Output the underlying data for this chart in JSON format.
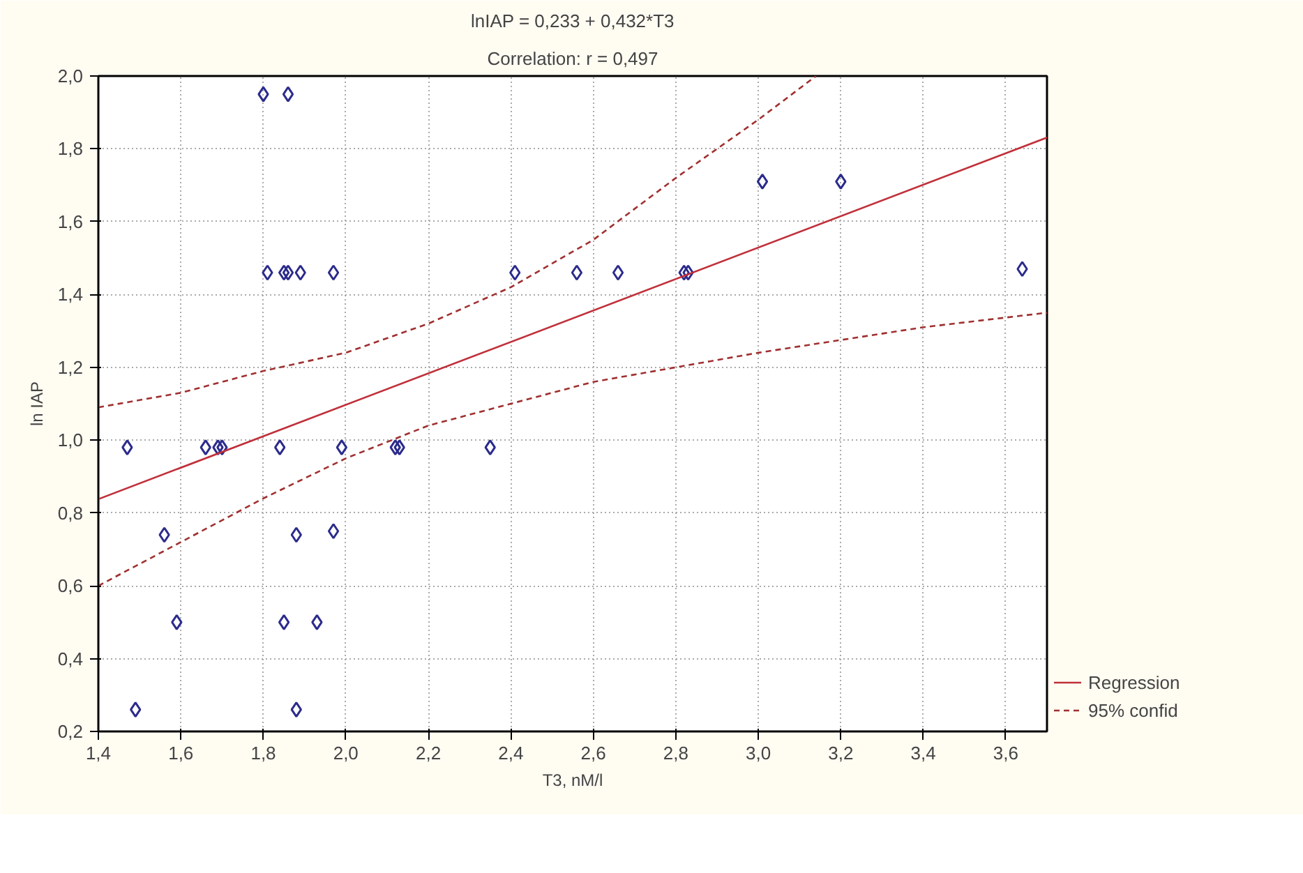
{
  "chart_data": {
    "type": "scatter",
    "title": "lnIAP = 0,233 + 0,432*T3",
    "subtitle": "Correlation: r = 0,497",
    "xlabel": "T3, nM/l",
    "ylabel": "ln IAP",
    "xlim": [
      1.4,
      3.7
    ],
    "ylim": [
      0.2,
      2.0
    ],
    "xticks": [
      {
        "value": 1.4,
        "label": "1,4"
      },
      {
        "value": 1.6,
        "label": "1,6"
      },
      {
        "value": 1.8,
        "label": "1,8"
      },
      {
        "value": 2.0,
        "label": "2,0"
      },
      {
        "value": 2.2,
        "label": "2,2"
      },
      {
        "value": 2.4,
        "label": "2,4"
      },
      {
        "value": 2.6,
        "label": "2,6"
      },
      {
        "value": 2.8,
        "label": "2,8"
      },
      {
        "value": 3.0,
        "label": "3,0"
      },
      {
        "value": 3.2,
        "label": "3,2"
      },
      {
        "value": 3.4,
        "label": "3,4"
      },
      {
        "value": 3.6,
        "label": "3,6"
      }
    ],
    "yticks": [
      {
        "value": 0.2,
        "label": "0,2"
      },
      {
        "value": 0.4,
        "label": "0,4"
      },
      {
        "value": 0.6,
        "label": "0,6"
      },
      {
        "value": 0.8,
        "label": "0,8"
      },
      {
        "value": 1.0,
        "label": "1,0"
      },
      {
        "value": 1.2,
        "label": "1,2"
      },
      {
        "value": 1.4,
        "label": "1,4"
      },
      {
        "value": 1.6,
        "label": "1,6"
      },
      {
        "value": 1.8,
        "label": "1,8"
      },
      {
        "value": 2.0,
        "label": "2,0"
      }
    ],
    "grid": true,
    "legend": "bottom right",
    "marker": "diamond",
    "series": [
      {
        "type": "scatter",
        "color": "#2b2b8c",
        "x": [
          1.8,
          1.86,
          1.81,
          1.85,
          1.86,
          1.89,
          1.97,
          2.41,
          2.56,
          2.66,
          2.82,
          2.83,
          3.64,
          3.01,
          3.2,
          1.47,
          1.66,
          1.69,
          1.7,
          1.84,
          1.99,
          2.12,
          2.13,
          2.35,
          1.56,
          1.88,
          1.97,
          1.59,
          1.85,
          1.93,
          1.49,
          1.88
        ],
        "values": [
          1.95,
          1.95,
          1.46,
          1.46,
          1.46,
          1.46,
          1.46,
          1.46,
          1.46,
          1.46,
          1.46,
          1.46,
          1.47,
          1.71,
          1.71,
          0.98,
          0.98,
          0.98,
          0.98,
          0.98,
          0.98,
          0.98,
          0.98,
          0.98,
          0.74,
          0.74,
          0.75,
          0.5,
          0.5,
          0.5,
          0.26,
          0.26
        ]
      },
      {
        "type": "line",
        "name": "Regression",
        "color": "#c0303a",
        "line_style": "solid",
        "marker": "none",
        "x": [
          1.4,
          3.7
        ],
        "values": [
          0.838,
          1.831
        ]
      },
      {
        "type": "line",
        "name": "95% confid",
        "color": "#a03030",
        "line_style": "dashed",
        "marker": "none",
        "x": [
          1.4,
          1.6,
          1.8,
          2.0,
          2.2,
          2.4,
          2.6,
          2.8,
          3.0,
          3.14
        ],
        "values": [
          1.09,
          1.13,
          1.19,
          1.24,
          1.32,
          1.42,
          1.55,
          1.72,
          1.88,
          2.0
        ]
      },
      {
        "type": "line",
        "color": "#a03030",
        "line_style": "dashed",
        "marker": "none",
        "x": [
          1.4,
          1.6,
          1.8,
          2.0,
          2.2,
          2.4,
          2.6,
          2.8,
          3.0,
          3.2,
          3.4,
          3.7
        ],
        "values": [
          0.6,
          0.72,
          0.84,
          0.95,
          1.04,
          1.1,
          1.16,
          1.2,
          1.24,
          1.275,
          1.31,
          1.35
        ]
      }
    ]
  }
}
